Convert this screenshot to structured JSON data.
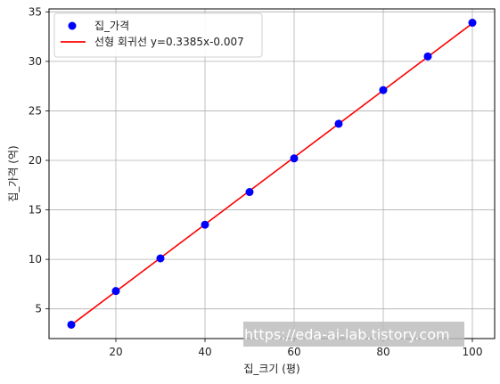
{
  "chart_data": {
    "type": "scatter",
    "xlabel": "집_크기 (평)",
    "ylabel": "집_가격 (억)",
    "xlim": [
      5,
      105
    ],
    "ylim": [
      2,
      35.3
    ],
    "x_ticks": [
      20,
      40,
      60,
      80,
      100
    ],
    "y_ticks": [
      5,
      10,
      15,
      20,
      25,
      30,
      35
    ],
    "grid": true,
    "legend_position": "top-left",
    "series": [
      {
        "name": "집_가격",
        "kind": "scatter",
        "color": "#0000ff",
        "x": [
          10,
          20,
          30,
          40,
          50,
          60,
          70,
          80,
          90,
          100
        ],
        "y": [
          3.4,
          6.8,
          10.1,
          13.5,
          16.8,
          20.2,
          23.7,
          27.1,
          30.5,
          33.9
        ]
      },
      {
        "name": "선형 회귀선 y=0.3385x-0.007",
        "kind": "line",
        "color": "#ff0000",
        "x": [
          10,
          100
        ],
        "y": [
          3.378,
          33.843
        ]
      }
    ]
  },
  "watermark": {
    "text": "https://eda-ai-lab.tistory.com"
  }
}
